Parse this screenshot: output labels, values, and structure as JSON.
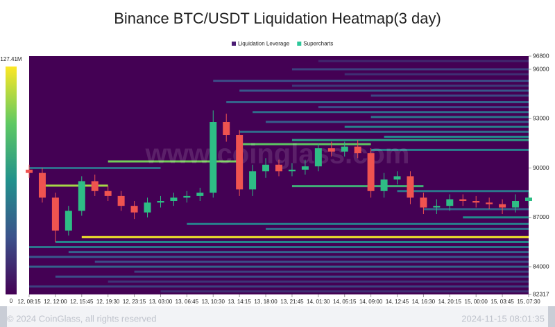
{
  "chart_data": {
    "type": "candlestick-heatmap",
    "title": "Binance BTC/USDT Liquidation Heatmap(3 day)",
    "legend": [
      {
        "name": "Liquidation Leverage",
        "color": "#4b1c73"
      },
      {
        "name": "Supercharts",
        "color": "#2cc79a"
      }
    ],
    "watermark": "www.coinglass.com",
    "footer_left": "© 2024 CoinGlass, all rights reserved",
    "footer_right": "2024-11-15 08:01:35",
    "ylim": [
      82317,
      96800
    ],
    "yticks": [
      82317,
      84000,
      87000,
      90000,
      93000,
      96000,
      96800
    ],
    "xlim": [
      0,
      38
    ],
    "xticks": [
      {
        "value": 0,
        "label": "12, 08:15"
      },
      {
        "value": 2,
        "label": "12, 12:00"
      },
      {
        "value": 4,
        "label": "12, 15:45"
      },
      {
        "value": 6,
        "label": "12, 19:30"
      },
      {
        "value": 8,
        "label": "12, 23:15"
      },
      {
        "value": 10,
        "label": "13, 03:00"
      },
      {
        "value": 12,
        "label": "13, 06:45"
      },
      {
        "value": 14,
        "label": "13, 10:30"
      },
      {
        "value": 16,
        "label": "13, 14:15"
      },
      {
        "value": 18,
        "label": "13, 18:00"
      },
      {
        "value": 20,
        "label": "13, 21:45"
      },
      {
        "value": 22,
        "label": "14, 01:30"
      },
      {
        "value": 24,
        "label": "14, 05:15"
      },
      {
        "value": 26,
        "label": "14, 09:00"
      },
      {
        "value": 28,
        "label": "14, 12:45"
      },
      {
        "value": 30,
        "label": "14, 16:30"
      },
      {
        "value": 32,
        "label": "14, 20:15"
      },
      {
        "value": 34,
        "label": "15, 00:00"
      },
      {
        "value": 36,
        "label": "15, 03:45"
      },
      {
        "value": 38,
        "label": "15, 07:30"
      }
    ],
    "clim": [
      0,
      127.41
    ],
    "colorbar_ticks": [
      0,
      {
        "value": 127.41,
        "label": "127.41M"
      }
    ],
    "colormap": [
      "#440154",
      "#3b528b",
      "#21918c",
      "#5ec962",
      "#fde725"
    ],
    "up_color": "#2ebd85",
    "down_color": "#ef5350",
    "candles": {
      "x": [
        0,
        1,
        2,
        3,
        4,
        5,
        6,
        7,
        8,
        9,
        10,
        11,
        12,
        13,
        14,
        15,
        16,
        17,
        18,
        19,
        20,
        21,
        22,
        23,
        24,
        25,
        26,
        27,
        28,
        29,
        30,
        31,
        32,
        33,
        34,
        35,
        36,
        37,
        38
      ],
      "open": [
        89900,
        89700,
        88200,
        86200,
        87400,
        89200,
        88600,
        88300,
        87700,
        87300,
        87900,
        88000,
        88200,
        88300,
        88500,
        92800,
        92000,
        88700,
        89800,
        90200,
        89800,
        89900,
        90100,
        91200,
        91000,
        91300,
        90900,
        88600,
        89300,
        89500,
        88200,
        87600,
        87700,
        88100,
        88000,
        87900,
        87800,
        87600,
        88000
      ],
      "high": [
        90200,
        90000,
        88500,
        87700,
        89500,
        89600,
        88900,
        88600,
        88000,
        88200,
        88300,
        88500,
        88600,
        88800,
        93500,
        93300,
        92300,
        90200,
        90600,
        90500,
        90300,
        90500,
        91500,
        91600,
        91600,
        91700,
        91200,
        89700,
        89800,
        89800,
        88500,
        88100,
        88400,
        88400,
        88300,
        88200,
        88100,
        88400,
        88500
      ],
      "low": [
        89400,
        87900,
        85500,
        85900,
        87100,
        88300,
        88000,
        87400,
        86900,
        87000,
        87600,
        87700,
        87900,
        88000,
        88200,
        91600,
        88300,
        88300,
        89400,
        89500,
        89500,
        89600,
        89800,
        90700,
        90700,
        90600,
        88200,
        88200,
        89000,
        87800,
        87200,
        87200,
        87400,
        87700,
        87600,
        87500,
        87200,
        87300,
        87700
      ],
      "close": [
        89700,
        88200,
        86200,
        87400,
        89200,
        88600,
        88300,
        87700,
        87300,
        87900,
        88000,
        88200,
        88300,
        88500,
        92800,
        92000,
        88700,
        89800,
        90200,
        89800,
        89900,
        90100,
        91200,
        91000,
        91300,
        90900,
        88600,
        89300,
        89500,
        88200,
        87600,
        87700,
        88100,
        88000,
        87900,
        87800,
        87600,
        88000,
        88200
      ]
    },
    "bands": [
      {
        "price": 96500,
        "value": 15,
        "start": 22,
        "end": 38
      },
      {
        "price": 96000,
        "value": 25,
        "start": 20,
        "end": 38
      },
      {
        "price": 95700,
        "value": 18,
        "start": 24,
        "end": 38
      },
      {
        "price": 95300,
        "value": 30,
        "start": 14,
        "end": 38
      },
      {
        "price": 95000,
        "value": 22,
        "start": 20,
        "end": 38
      },
      {
        "price": 94700,
        "value": 35,
        "start": 16,
        "end": 38
      },
      {
        "price": 94400,
        "value": 28,
        "start": 26,
        "end": 38
      },
      {
        "price": 94000,
        "value": 40,
        "start": 15,
        "end": 38
      },
      {
        "price": 93700,
        "value": 30,
        "start": 22,
        "end": 38
      },
      {
        "price": 93400,
        "value": 45,
        "start": 17,
        "end": 38
      },
      {
        "price": 93100,
        "value": 50,
        "start": 26,
        "end": 38
      },
      {
        "price": 92800,
        "value": 38,
        "start": 18,
        "end": 38
      },
      {
        "price": 92500,
        "value": 55,
        "start": 24,
        "end": 38
      },
      {
        "price": 92200,
        "value": 45,
        "start": 16,
        "end": 38
      },
      {
        "price": 91900,
        "value": 60,
        "start": 27,
        "end": 38
      },
      {
        "price": 91700,
        "value": 70,
        "start": 20,
        "end": 38
      },
      {
        "price": 91450,
        "value": 95,
        "start": 16,
        "end": 26
      },
      {
        "price": 91100,
        "value": 55,
        "start": 26,
        "end": 38
      },
      {
        "price": 90400,
        "value": 100,
        "start": 6,
        "end": 16
      },
      {
        "price": 90000,
        "value": 45,
        "start": 0,
        "end": 10
      },
      {
        "price": 88930,
        "value": 110,
        "start": 1,
        "end": 6
      },
      {
        "price": 88900,
        "value": 80,
        "start": 20,
        "end": 30
      },
      {
        "price": 88600,
        "value": 50,
        "start": 28,
        "end": 38
      },
      {
        "price": 87500,
        "value": 40,
        "start": 30,
        "end": 38
      },
      {
        "price": 87000,
        "value": 60,
        "start": 33,
        "end": 38
      },
      {
        "price": 86600,
        "value": 55,
        "start": 12,
        "end": 38
      },
      {
        "price": 86300,
        "value": 45,
        "start": 18,
        "end": 38
      },
      {
        "price": 85800,
        "value": 125,
        "start": 4,
        "end": 38
      },
      {
        "price": 85500,
        "value": 60,
        "start": 2,
        "end": 38
      },
      {
        "price": 85200,
        "value": 50,
        "start": 0,
        "end": 38
      },
      {
        "price": 84900,
        "value": 40,
        "start": 3,
        "end": 38
      },
      {
        "price": 84600,
        "value": 35,
        "start": 0,
        "end": 38
      },
      {
        "price": 84300,
        "value": 30,
        "start": 5,
        "end": 38
      },
      {
        "price": 84000,
        "value": 40,
        "start": 0,
        "end": 38
      },
      {
        "price": 83700,
        "value": 25,
        "start": 8,
        "end": 38
      },
      {
        "price": 83400,
        "value": 30,
        "start": 2,
        "end": 38
      },
      {
        "price": 83100,
        "value": 20,
        "start": 6,
        "end": 38
      },
      {
        "price": 82800,
        "value": 25,
        "start": 0,
        "end": 38
      },
      {
        "price": 82500,
        "value": 18,
        "start": 10,
        "end": 38
      }
    ]
  }
}
